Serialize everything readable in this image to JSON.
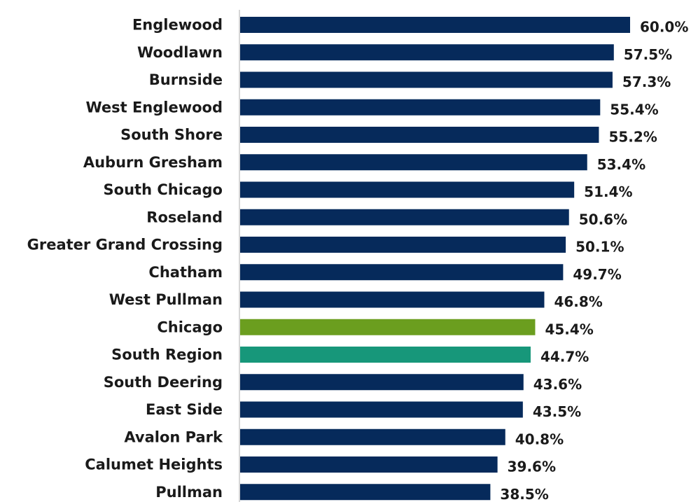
{
  "chart_data": {
    "type": "bar",
    "orientation": "horizontal",
    "title": "",
    "xlabel": "",
    "ylabel": "",
    "xlim": [
      0,
      60
    ],
    "grid": false,
    "categories": [
      "Englewood",
      "Woodlawn",
      "Burnside",
      "West Englewood",
      "South Shore",
      "Auburn Gresham",
      "South Chicago",
      "Roseland",
      "Greater Grand Crossing",
      "Chatham",
      "West Pullman",
      "Chicago",
      "South Region",
      "South Deering",
      "East Side",
      "Avalon Park",
      "Calumet Heights",
      "Pullman"
    ],
    "values": [
      60.0,
      57.5,
      57.3,
      55.4,
      55.2,
      53.4,
      51.4,
      50.6,
      50.1,
      49.7,
      46.8,
      45.4,
      44.7,
      43.6,
      43.5,
      40.8,
      39.6,
      38.5
    ],
    "value_labels": [
      "60.0%",
      "57.5%",
      "57.3%",
      "55.4%",
      "55.2%",
      "53.4%",
      "51.4%",
      "50.6%",
      "50.1%",
      "49.7%",
      "46.8%",
      "45.4%",
      "44.7%",
      "43.6%",
      "43.5%",
      "40.8%",
      "39.6%",
      "38.5%"
    ],
    "colors": {
      "default": "#062A5B",
      "Chicago": "#6B9E1F",
      "South Region": "#17977A",
      "axis": "#C8C8C8"
    }
  }
}
